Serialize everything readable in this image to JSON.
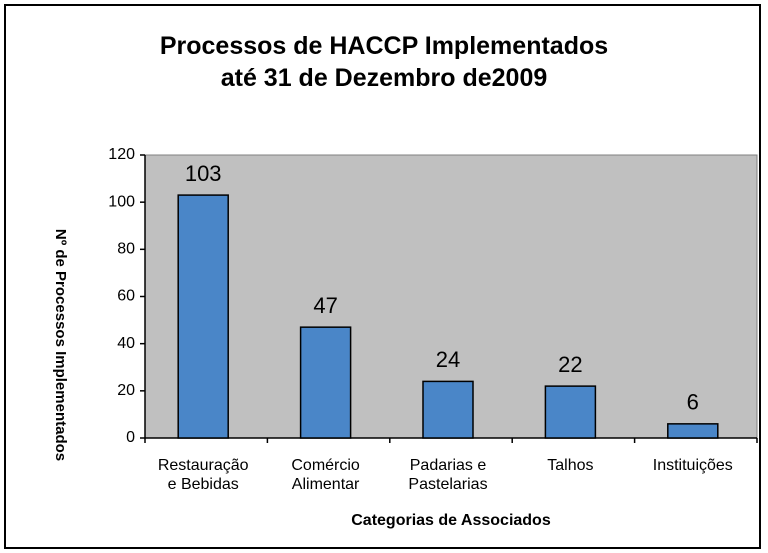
{
  "chart_data": {
    "type": "bar",
    "title": "Processos de HACCP Implementados\naté 31 de Dezembro de2009",
    "x_label": "Categorias de Associados",
    "y_label": "Nº de Processos Implementados",
    "categories": [
      "Restauração\ne Bebidas",
      "Comércio\nAlimentar",
      "Padarias e\nPastelarias",
      "Talhos",
      "Instituições"
    ],
    "values": [
      103,
      47,
      24,
      22,
      6
    ],
    "color": "#4a86c8",
    "ylim": [
      0,
      120
    ],
    "yticks": [
      0,
      20,
      40,
      60,
      80,
      100,
      120
    ],
    "grid": false
  }
}
